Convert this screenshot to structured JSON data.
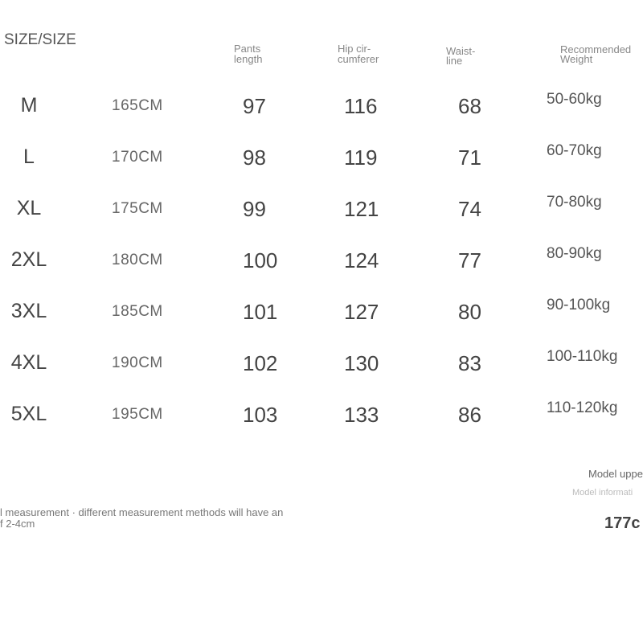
{
  "header": {
    "title": "SIZE/SIZE",
    "columns": [
      [
        "Pants",
        "length"
      ],
      [
        "Hip cir-",
        "cumferer"
      ],
      [
        "Waist-",
        "line"
      ],
      [
        "Recommended",
        "Weight"
      ]
    ]
  },
  "table": {
    "rows": [
      [
        "M",
        "165CM",
        97,
        116,
        68,
        "50-60kg"
      ],
      [
        "L",
        "170CM",
        98,
        119,
        71,
        "60-70kg"
      ],
      [
        "XL",
        "175CM",
        99,
        121,
        74,
        "70-80kg"
      ],
      [
        "2XL",
        "180CM",
        100,
        124,
        77,
        "80-90kg"
      ],
      [
        "3XL",
        "185CM",
        101,
        127,
        80,
        "90-100kg"
      ],
      [
        "4XL",
        "190CM",
        102,
        130,
        83,
        "100-110kg"
      ],
      [
        "5XL",
        "195CM",
        103,
        133,
        86,
        "110-120kg"
      ]
    ]
  },
  "note": {
    "lines": [
      "l measurement · different measurement methods will have an",
      "f 2-4cm"
    ]
  },
  "model": {
    "title": "Model uppe",
    "info": "Model informati",
    "height": "177c"
  }
}
